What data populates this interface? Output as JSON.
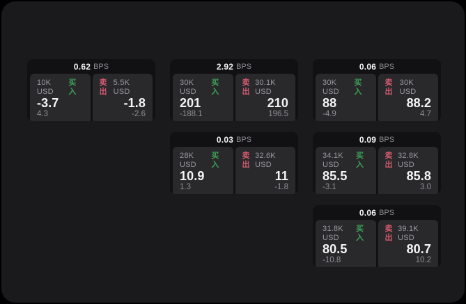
{
  "labels": {
    "bps": "BPS",
    "buy": "买入",
    "sell": "卖出"
  },
  "colors": {
    "background": "#000000",
    "panel_bg": "#1a1a1c",
    "card_bg": "#111113",
    "tile_bg": "#29292b",
    "buy_green": "#3ea157",
    "sell_red": "#d65a71",
    "value_white": "#f4f4f6",
    "label_gray": "#9a9a9f"
  },
  "cards": [
    {
      "bps": "0.62",
      "buy": {
        "amount": "10K USD",
        "value": "-3.7",
        "sub": "4.3"
      },
      "sell": {
        "amount": "5.5K USD",
        "value": "-1.8",
        "sub": "-2.6"
      }
    },
    {
      "bps": "2.92",
      "buy": {
        "amount": "30K USD",
        "value": "201",
        "sub": "-188.1"
      },
      "sell": {
        "amount": "30.1K USD",
        "value": "210",
        "sub": "196.5"
      }
    },
    {
      "bps": "0.06",
      "buy": {
        "amount": "30K USD",
        "value": "88",
        "sub": "-4.9"
      },
      "sell": {
        "amount": "30K USD",
        "value": "88.2",
        "sub": "4.7"
      }
    },
    {
      "bps": "0.03",
      "buy": {
        "amount": "28K USD",
        "value": "10.9",
        "sub": "1.3"
      },
      "sell": {
        "amount": "32.6K USD",
        "value": "11",
        "sub": "-1.8"
      }
    },
    {
      "bps": "0.09",
      "buy": {
        "amount": "34.1K USD",
        "value": "85.5",
        "sub": "-3.1"
      },
      "sell": {
        "amount": "32.8K USD",
        "value": "85.8",
        "sub": "3.0"
      }
    },
    {
      "bps": "0.06",
      "buy": {
        "amount": "31.8K USD",
        "value": "80.5",
        "sub": "-10.8"
      },
      "sell": {
        "amount": "39.1K USD",
        "value": "80.7",
        "sub": "10.2"
      }
    }
  ]
}
